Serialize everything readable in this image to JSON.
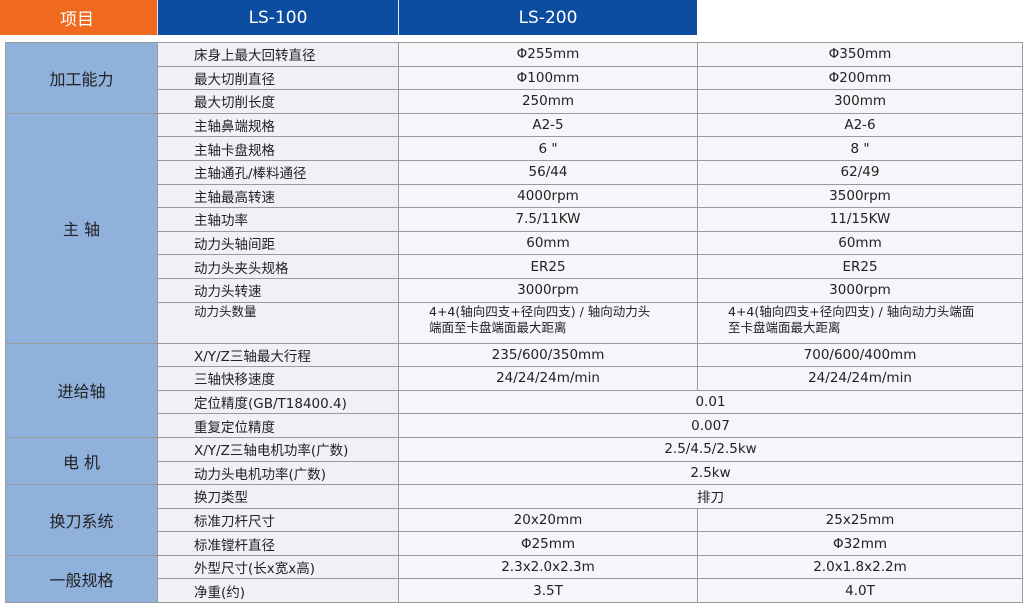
{
  "header": {
    "item": "项目",
    "models": [
      "LS-100",
      "LS-200"
    ]
  },
  "groups": [
    {
      "name": "加工能力",
      "rows": [
        {
          "label": "床身上最大回转直径",
          "values": [
            "Φ255mm",
            "Φ350mm"
          ]
        },
        {
          "label": "最大切削直径",
          "values": [
            "Φ100mm",
            "Φ200mm"
          ]
        },
        {
          "label": "最大切削长度",
          "values": [
            "250mm",
            "300mm"
          ]
        }
      ]
    },
    {
      "name": "主 轴",
      "rows": [
        {
          "label": "主轴鼻端规格",
          "values": [
            "A2-5",
            "A2-6"
          ]
        },
        {
          "label": "主轴卡盘规格",
          "values": [
            "6 \"",
            "8 \""
          ]
        },
        {
          "label": "主轴通孔/棒料通径",
          "values": [
            "56/44",
            "62/49"
          ]
        },
        {
          "label": "主轴最高转速",
          "values": [
            "4000rpm",
            "3500rpm"
          ]
        },
        {
          "label": "主轴功率",
          "values": [
            "7.5/11KW",
            "11/15KW"
          ]
        },
        {
          "label": "动力头轴间距",
          "values": [
            "60mm",
            "60mm"
          ]
        },
        {
          "label": "动力头夹头规格",
          "values": [
            "ER25",
            "ER25"
          ]
        },
        {
          "label": "动力头转速",
          "values": [
            "3000rpm",
            "3000rpm"
          ]
        },
        {
          "label": "动力头数量",
          "values": [
            "4+4(轴向四支+径向四支) / 轴向动力头端面至卡盘端面最大距离",
            "4+4(轴向四支+径向四支) / 轴向动力头端面至卡盘端面最大距离"
          ]
        }
      ]
    },
    {
      "name": "进给轴",
      "rows": [
        {
          "label": "X/Y/Z三轴最大行程",
          "values": [
            "235/600/350mm",
            "700/600/400mm"
          ]
        },
        {
          "label": "三轴快移速度",
          "values": [
            "24/24/24m/min",
            "24/24/24m/min"
          ]
        },
        {
          "label": "定位精度(GB/T18400.4)",
          "values": [
            "0.01"
          ]
        },
        {
          "label": "重复定位精度",
          "values": [
            "0.007"
          ]
        }
      ]
    },
    {
      "name": "电 机",
      "rows": [
        {
          "label": "X/Y/Z三轴电机功率(广数)",
          "values": [
            "2.5/4.5/2.5kw"
          ]
        },
        {
          "label": "动力头电机功率(广数)",
          "values": [
            "2.5kw"
          ]
        }
      ]
    },
    {
      "name": "换刀系统",
      "rows": [
        {
          "label": "换刀类型",
          "values": [
            "排刀"
          ]
        },
        {
          "label": "标准刀杆尺寸",
          "values": [
            "20x20mm",
            "25x25mm"
          ]
        },
        {
          "label": "标准镗杆直径",
          "values": [
            "Φ25mm",
            "Φ32mm"
          ]
        }
      ]
    },
    {
      "name": "一般规格",
      "rows": [
        {
          "label": "外型尺寸(长x宽x高)",
          "values": [
            "2.3x2.0x2.3m",
            "2.0x1.8x2.2m"
          ]
        },
        {
          "label": "净重(约)",
          "values": [
            "3.5T",
            "4.0T"
          ]
        }
      ]
    }
  ]
}
